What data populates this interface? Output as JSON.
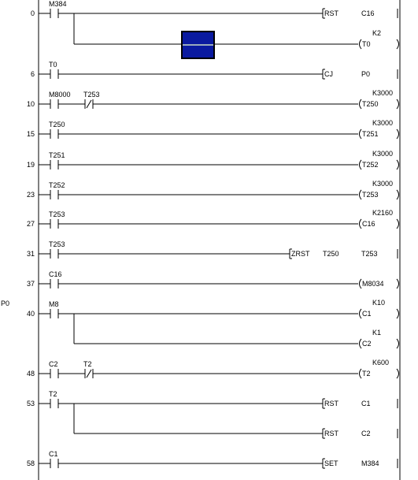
{
  "pointer_label": "P0",
  "cursor_color": "#0a1aa0",
  "rungs": [
    {
      "step": "0",
      "contacts": [
        {
          "label": "M384",
          "type": "no"
        }
      ],
      "coil": {
        "kind": "instr",
        "op": "RST",
        "operands": [
          "C16"
        ]
      },
      "branches": [
        {
          "kind": "coil",
          "name": "T0",
          "k": "K2"
        }
      ]
    },
    {
      "step": "6",
      "contacts": [
        {
          "label": "T0",
          "type": "no"
        }
      ],
      "coil": {
        "kind": "instr",
        "op": "CJ",
        "operands": [
          "P0"
        ]
      }
    },
    {
      "step": "10",
      "contacts": [
        {
          "label": "M8000",
          "type": "no"
        },
        {
          "label": "T253",
          "type": "nc"
        }
      ],
      "coil": {
        "kind": "coil",
        "name": "T250",
        "k": "K3000"
      }
    },
    {
      "step": "15",
      "contacts": [
        {
          "label": "T250",
          "type": "no"
        }
      ],
      "coil": {
        "kind": "coil",
        "name": "T251",
        "k": "K3000"
      }
    },
    {
      "step": "19",
      "contacts": [
        {
          "label": "T251",
          "type": "no"
        }
      ],
      "coil": {
        "kind": "coil",
        "name": "T252",
        "k": "K3000"
      }
    },
    {
      "step": "23",
      "contacts": [
        {
          "label": "T252",
          "type": "no"
        }
      ],
      "coil": {
        "kind": "coil",
        "name": "T253",
        "k": "K3000"
      }
    },
    {
      "step": "27",
      "contacts": [
        {
          "label": "T253",
          "type": "no"
        }
      ],
      "coil": {
        "kind": "coil",
        "name": "C16",
        "k": "K2160"
      }
    },
    {
      "step": "31",
      "contacts": [
        {
          "label": "T253",
          "type": "no"
        }
      ],
      "coil": {
        "kind": "instr",
        "op": "ZRST",
        "operands": [
          "T250",
          "T253"
        ]
      }
    },
    {
      "step": "37",
      "contacts": [
        {
          "label": "C16",
          "type": "no"
        }
      ],
      "coil": {
        "kind": "coil",
        "name": "M8034",
        "k": ""
      }
    },
    {
      "step": "40",
      "contacts": [
        {
          "label": "M8",
          "type": "no"
        }
      ],
      "coil": {
        "kind": "coil",
        "name": "C1",
        "k": "K10"
      },
      "branches": [
        {
          "kind": "coil",
          "name": "C2",
          "k": "K1"
        }
      ]
    },
    {
      "step": "48",
      "contacts": [
        {
          "label": "C2",
          "type": "no"
        },
        {
          "label": "T2",
          "type": "nc"
        }
      ],
      "coil": {
        "kind": "coil",
        "name": "T2",
        "k": "K600"
      }
    },
    {
      "step": "53",
      "contacts": [
        {
          "label": "T2",
          "type": "no"
        }
      ],
      "coil": {
        "kind": "instr",
        "op": "RST",
        "operands": [
          "C1"
        ]
      },
      "branches": [
        {
          "kind": "instr",
          "op": "RST",
          "operands": [
            "C2"
          ]
        }
      ]
    },
    {
      "step": "58",
      "contacts": [
        {
          "label": "C1",
          "type": "no"
        }
      ],
      "coil": {
        "kind": "instr",
        "op": "SET",
        "operands": [
          "M384"
        ]
      }
    }
  ]
}
